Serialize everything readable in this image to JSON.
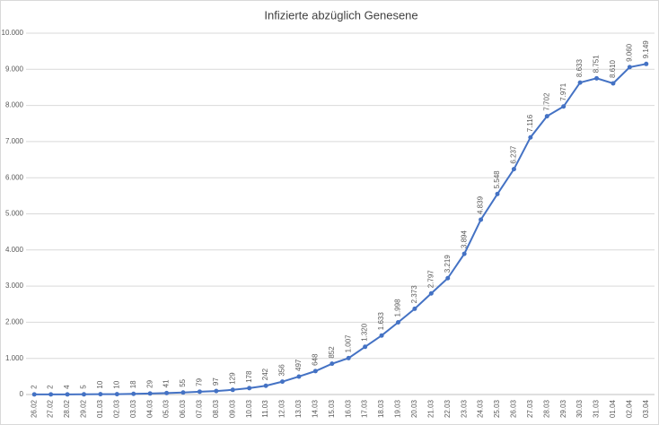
{
  "chart_data": {
    "type": "line",
    "title": "Infizierte abzüglich Genesene",
    "categories": [
      "26.02",
      "27.02",
      "28.02",
      "29.02",
      "01.03",
      "02.03",
      "03.03",
      "04.03",
      "05.03",
      "06.03",
      "07.03",
      "08.03",
      "09.03",
      "10.03",
      "11.03",
      "12.03",
      "13.03",
      "14.03",
      "15.03",
      "16.03",
      "17.03",
      "18.03",
      "19.03",
      "20.03",
      "21.03",
      "22.03",
      "23.03",
      "24.03",
      "25.03",
      "26.03",
      "27.03",
      "28.03",
      "29.03",
      "30.03",
      "31.03",
      "01.04",
      "02.04",
      "03.04"
    ],
    "series": [
      {
        "name": "Infizierte abzüglich Genesene",
        "color": "#4472c4",
        "values": [
          2,
          2,
          4,
          5,
          10,
          10,
          18,
          29,
          41,
          55,
          79,
          97,
          129,
          178,
          242,
          356,
          497,
          648,
          852,
          1007,
          1320,
          1633,
          1998,
          2373,
          2797,
          3219,
          3894,
          4839,
          5548,
          6237,
          7116,
          7702,
          7971,
          8633,
          8751,
          8610,
          9060,
          9149
        ],
        "value_labels": [
          "2",
          "2",
          "4",
          "5",
          "10",
          "10",
          "18",
          "29",
          "41",
          "55",
          "79",
          "97",
          "129",
          "178",
          "242",
          "356",
          "497",
          "648",
          "852",
          "1.007",
          "1.320",
          "1.633",
          "1.998",
          "2.373",
          "2.797",
          "3.219",
          "3.894",
          "4.839",
          "5.548",
          "6.237",
          "7.116",
          "7.702",
          "7.971",
          "8.633",
          "8.751",
          "8.610",
          "9.060",
          "9.149"
        ]
      }
    ],
    "ylim": [
      0,
      10000
    ],
    "yticks": [
      0,
      {
        "value": 1000,
        "label": "1.000"
      },
      {
        "value": 2000,
        "label": "2.000"
      },
      {
        "value": 3000,
        "label": "3.000"
      },
      {
        "value": 4000,
        "label": "4.000"
      },
      {
        "value": 5000,
        "label": "5.000"
      },
      {
        "value": 6000,
        "label": "6.000"
      },
      {
        "value": 7000,
        "label": "7.000"
      },
      {
        "value": 8000,
        "label": "8.000"
      },
      {
        "value": 9000,
        "label": "9.000"
      },
      {
        "value": 10000,
        "label": "10.000"
      }
    ],
    "grid": true
  }
}
